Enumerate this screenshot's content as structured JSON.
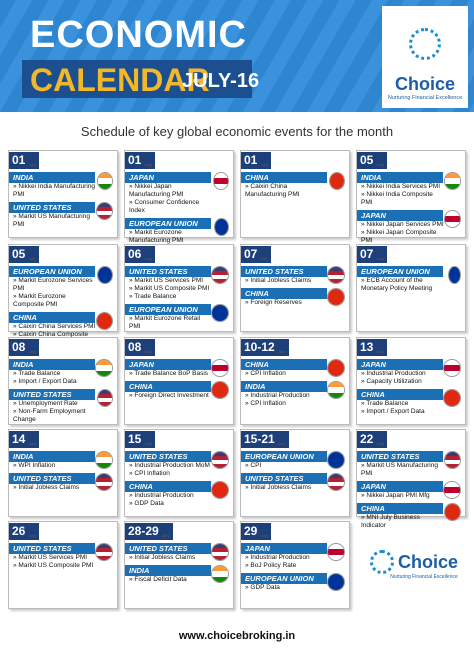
{
  "header": {
    "title": "ECONOMIC",
    "title2": "CALENDAR",
    "period": "JULY-16",
    "brand": "Choice",
    "tagline": "Nurturing Financial Excellence"
  },
  "subtitle": "Schedule of key global economic events for the month",
  "month_tag": "July",
  "flags": {
    "INDIA": [
      "#ff9933",
      "#ffffff",
      "#138808"
    ],
    "UNITED STATES": [
      "#3c3b6e",
      "#b22234",
      "#ffffff",
      "#b22234"
    ],
    "JAPAN": [
      "#ffffff",
      "#bc002d",
      "#ffffff"
    ],
    "CHINA": [
      "#de2910"
    ],
    "EUROPEAN UNION": [
      "#003399"
    ]
  },
  "cards": [
    {
      "date": "01",
      "regions": [
        {
          "name": "INDIA",
          "items": [
            "» Nikkei India Manufacturing PMI"
          ]
        },
        {
          "name": "UNITED STATES",
          "items": [
            "» Markit US Manufacturing PMI"
          ]
        }
      ]
    },
    {
      "date": "01",
      "regions": [
        {
          "name": "JAPAN",
          "items": [
            "» Nikkei Japan Manufacturing PMI",
            "» Consumer Confidence Index"
          ]
        },
        {
          "name": "EUROPEAN UNION",
          "items": [
            "» Markit Eurozone Manufacturing PMI"
          ]
        }
      ]
    },
    {
      "date": "01",
      "regions": [
        {
          "name": "CHINA",
          "items": [
            "» Caixin China Manufacturing PMI"
          ]
        }
      ]
    },
    {
      "date": "05",
      "regions": [
        {
          "name": "INDIA",
          "items": [
            "» Nikkei India Services PMI",
            "» Nikkei India Composite PMI"
          ]
        },
        {
          "name": "JAPAN",
          "items": [
            "» Nikkei Japan Services PMI",
            "» Nikkei Japan Composite PMI"
          ]
        }
      ]
    },
    {
      "date": "05",
      "regions": [
        {
          "name": "EUROPEAN UNION",
          "items": [
            "» Markit Eurozone Services PMI",
            "» Markit Eurozone Composite PMI"
          ]
        },
        {
          "name": "CHINA",
          "items": [
            "» Caixin China Services PMI",
            "» Caixin China Composite PMI"
          ]
        }
      ]
    },
    {
      "date": "06",
      "regions": [
        {
          "name": "UNITED STATES",
          "items": [
            "» Markit US Services PMI",
            "» Markit US Composite PMI",
            "» Trade Balance"
          ]
        },
        {
          "name": "EUROPEAN UNION",
          "items": [
            "» Markit Eurozone Retail PMI"
          ]
        }
      ]
    },
    {
      "date": "07",
      "regions": [
        {
          "name": "UNITED STATES",
          "items": [
            "» Initial Jobless Claims"
          ]
        },
        {
          "name": "CHINA",
          "items": [
            "» Foreign Reserves"
          ]
        }
      ]
    },
    {
      "date": "07",
      "regions": [
        {
          "name": "EUROPEAN UNION",
          "items": [
            "» ECB Account of the Monetary Policy Meeting"
          ]
        }
      ]
    },
    {
      "date": "08",
      "regions": [
        {
          "name": "INDIA",
          "items": [
            "» Trade Balance",
            "» Import / Export Data"
          ]
        },
        {
          "name": "UNITED STATES",
          "items": [
            "» Unemployment Rate",
            "» Non-Farm Employment Change"
          ]
        }
      ]
    },
    {
      "date": "08",
      "regions": [
        {
          "name": "JAPAN",
          "items": [
            "» Trade Balance BoP Basis"
          ]
        },
        {
          "name": "CHINA",
          "items": [
            "» Foreign Direct Investment"
          ]
        }
      ]
    },
    {
      "date": "10-12",
      "regions": [
        {
          "name": "CHINA",
          "items": [
            "» CPI Inflation"
          ]
        },
        {
          "name": "INDIA",
          "items": [
            "» Industrial Production",
            "» CPI Inflation"
          ]
        }
      ]
    },
    {
      "date": "13",
      "regions": [
        {
          "name": "JAPAN",
          "items": [
            "» Industrial Production",
            "» Capacity Utilization"
          ]
        },
        {
          "name": "CHINA",
          "items": [
            "» Trade Balance",
            "» Import / Export Data"
          ]
        }
      ]
    },
    {
      "date": "14",
      "regions": [
        {
          "name": "INDIA",
          "items": [
            "» WPI Inflation"
          ]
        },
        {
          "name": "UNITED STATES",
          "items": [
            "» Initial Jobless Claims"
          ]
        }
      ]
    },
    {
      "date": "15",
      "regions": [
        {
          "name": "UNITED STATES",
          "items": [
            "» Industrial Production MoM",
            "» CPI Inflation"
          ]
        },
        {
          "name": "CHINA",
          "items": [
            "» Industrial Production",
            "» GDP Data"
          ]
        }
      ]
    },
    {
      "date": "15-21",
      "regions": [
        {
          "name": "EUROPEAN UNION",
          "items": [
            "» CPI"
          ]
        },
        {
          "name": "UNITED STATES",
          "items": [
            "» Initial Jobless Claims"
          ]
        }
      ]
    },
    {
      "date": "22",
      "regions": [
        {
          "name": "UNITED STATES",
          "items": [
            "» Markit US Manufacturing PMI"
          ]
        },
        {
          "name": "JAPAN",
          "items": [
            "» Nikkei Japan PMI Mfg"
          ]
        },
        {
          "name": "CHINA",
          "items": [
            "» MNI July Business Indicator"
          ]
        }
      ]
    },
    {
      "date": "26",
      "regions": [
        {
          "name": "UNITED STATES",
          "items": [
            "» Markit US Services PMI",
            "» Markit US Composite PMI"
          ]
        }
      ]
    },
    {
      "date": "28-29",
      "regions": [
        {
          "name": "UNITED STATES",
          "items": [
            "» Initial Jobless Claims"
          ]
        },
        {
          "name": "INDIA",
          "items": [
            "» Fiscal Deficit Data"
          ]
        }
      ]
    },
    {
      "date": "29",
      "regions": [
        {
          "name": "JAPAN",
          "items": [
            "» Industrial Production",
            "» BoJ Policy Rate"
          ]
        },
        {
          "name": "EUROPEAN UNION",
          "items": [
            "» GDP Data"
          ]
        }
      ]
    }
  ],
  "footer": "www.choicebroking.in"
}
